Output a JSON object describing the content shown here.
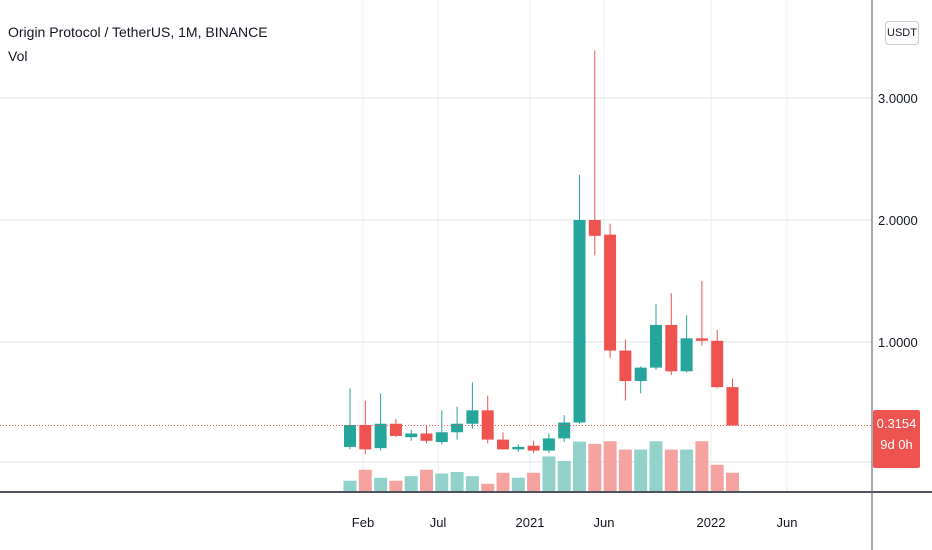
{
  "header": {
    "symbol_title": "Origin Protocol / TetherUS, 1M, BINANCE",
    "volume_label": "Vol",
    "currency_button": "USDT"
  },
  "price_tag": {
    "price": "0.3154",
    "countdown": "9d 0h"
  },
  "colors": {
    "up": "#26a69a",
    "down": "#ef5350",
    "volume_up": "#93d2cb",
    "volume_down": "#f5a3a1",
    "grid": "#e9edf2",
    "last_price_line": "#ef5350"
  },
  "chart_data": {
    "type": "candlestick",
    "interval": "1M",
    "y_axis": {
      "ticks": [
        "1.0000",
        "2.0000",
        "3.0000"
      ],
      "tick_values": [
        1,
        2,
        3
      ]
    },
    "x_axis": {
      "tick_labels": [
        "Feb",
        "Jul",
        "2021",
        "Jun",
        "2022",
        "Jun"
      ]
    },
    "candles": [
      {
        "open": 0.14,
        "high": 0.62,
        "low": 0.12,
        "close": 0.32
      },
      {
        "open": 0.32,
        "high": 0.52,
        "low": 0.08,
        "close": 0.12
      },
      {
        "open": 0.13,
        "high": 0.58,
        "low": 0.11,
        "close": 0.33
      },
      {
        "open": 0.33,
        "high": 0.37,
        "low": 0.22,
        "close": 0.23
      },
      {
        "open": 0.22,
        "high": 0.28,
        "low": 0.19,
        "close": 0.25
      },
      {
        "open": 0.25,
        "high": 0.32,
        "low": 0.17,
        "close": 0.19
      },
      {
        "open": 0.18,
        "high": 0.44,
        "low": 0.16,
        "close": 0.26
      },
      {
        "open": 0.26,
        "high": 0.47,
        "low": 0.2,
        "close": 0.33
      },
      {
        "open": 0.33,
        "high": 0.67,
        "low": 0.29,
        "close": 0.44
      },
      {
        "open": 0.44,
        "high": 0.56,
        "low": 0.17,
        "close": 0.2
      },
      {
        "open": 0.2,
        "high": 0.26,
        "low": 0.12,
        "close": 0.12
      },
      {
        "open": 0.12,
        "high": 0.16,
        "low": 0.1,
        "close": 0.14
      },
      {
        "open": 0.15,
        "high": 0.19,
        "low": 0.09,
        "close": 0.11
      },
      {
        "open": 0.11,
        "high": 0.25,
        "low": 0.09,
        "close": 0.21
      },
      {
        "open": 0.21,
        "high": 0.4,
        "low": 0.18,
        "close": 0.34
      },
      {
        "open": 0.34,
        "high": 2.37,
        "low": 0.33,
        "close": 2.0
      },
      {
        "open": 2.0,
        "high": 3.39,
        "low": 1.71,
        "close": 1.87
      },
      {
        "open": 1.88,
        "high": 1.97,
        "low": 0.87,
        "close": 0.93
      },
      {
        "open": 0.93,
        "high": 1.02,
        "low": 0.52,
        "close": 0.68
      },
      {
        "open": 0.68,
        "high": 0.8,
        "low": 0.58,
        "close": 0.79
      },
      {
        "open": 0.79,
        "high": 1.31,
        "low": 0.77,
        "close": 1.14
      },
      {
        "open": 1.14,
        "high": 1.4,
        "low": 0.73,
        "close": 0.76
      },
      {
        "open": 0.76,
        "high": 1.22,
        "low": 0.75,
        "close": 1.03
      },
      {
        "open": 1.03,
        "high": 1.5,
        "low": 0.97,
        "close": 1.01
      },
      {
        "open": 1.01,
        "high": 1.1,
        "low": 0.62,
        "close": 0.63
      },
      {
        "open": 0.63,
        "high": 0.7,
        "low": 0.31,
        "close": 0.3154
      }
    ],
    "volume_relative": [
      0.27,
      0.56,
      0.35,
      0.27,
      0.39,
      0.56,
      0.46,
      0.5,
      0.39,
      0.19,
      0.48,
      0.35,
      0.48,
      0.91,
      0.79,
      1.3,
      1.24,
      1.31,
      1.09,
      1.09,
      1.31,
      1.09,
      1.09,
      1.31,
      0.69,
      0.48
    ],
    "last_price": 0.3154,
    "grid": true,
    "legend": "top-left"
  }
}
